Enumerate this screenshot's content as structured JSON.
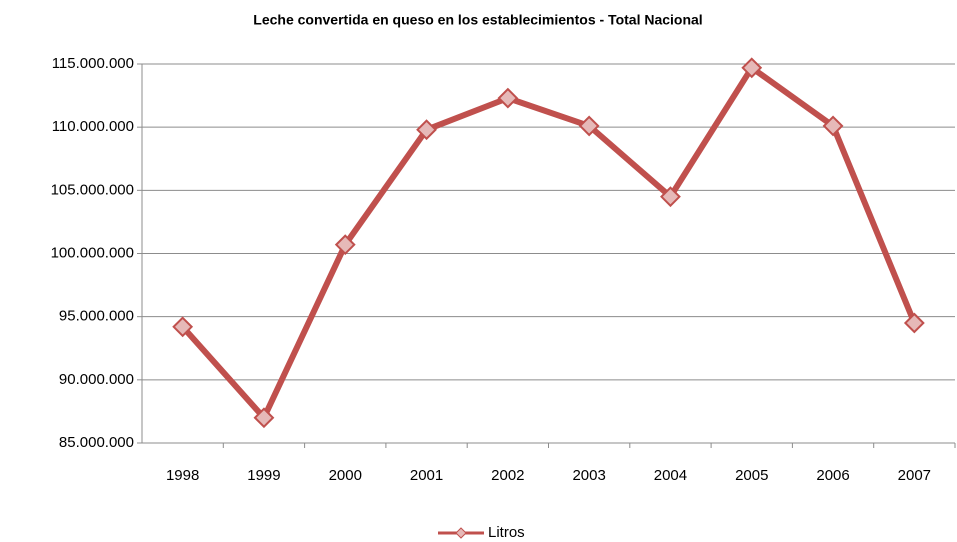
{
  "chart_data": {
    "type": "line",
    "title": "Leche convertida en queso en los establecimientos - Total Nacional",
    "categories": [
      "1998",
      "1999",
      "2000",
      "2001",
      "2002",
      "2003",
      "2004",
      "2005",
      "2006",
      "2007"
    ],
    "series": [
      {
        "name": "Litros",
        "color": "#c0504d",
        "marker_fill": "#e6b9b8",
        "values": [
          94200000,
          87000000,
          100700000,
          109800000,
          112300000,
          110100000,
          104500000,
          114700000,
          110100000,
          94500000
        ]
      }
    ],
    "ylim": [
      85000000,
      115000000
    ],
    "yticks": [
      {
        "value": 85000000,
        "label": "85.000.000"
      },
      {
        "value": 90000000,
        "label": "90.000.000"
      },
      {
        "value": 95000000,
        "label": "95.000.000"
      },
      {
        "value": 100000000,
        "label": "100.000.000"
      },
      {
        "value": 105000000,
        "label": "105.000.000"
      },
      {
        "value": 110000000,
        "label": "110.000.000"
      },
      {
        "value": 115000000,
        "label": "115.000.000"
      }
    ],
    "grid": true,
    "legend": "bottom"
  }
}
